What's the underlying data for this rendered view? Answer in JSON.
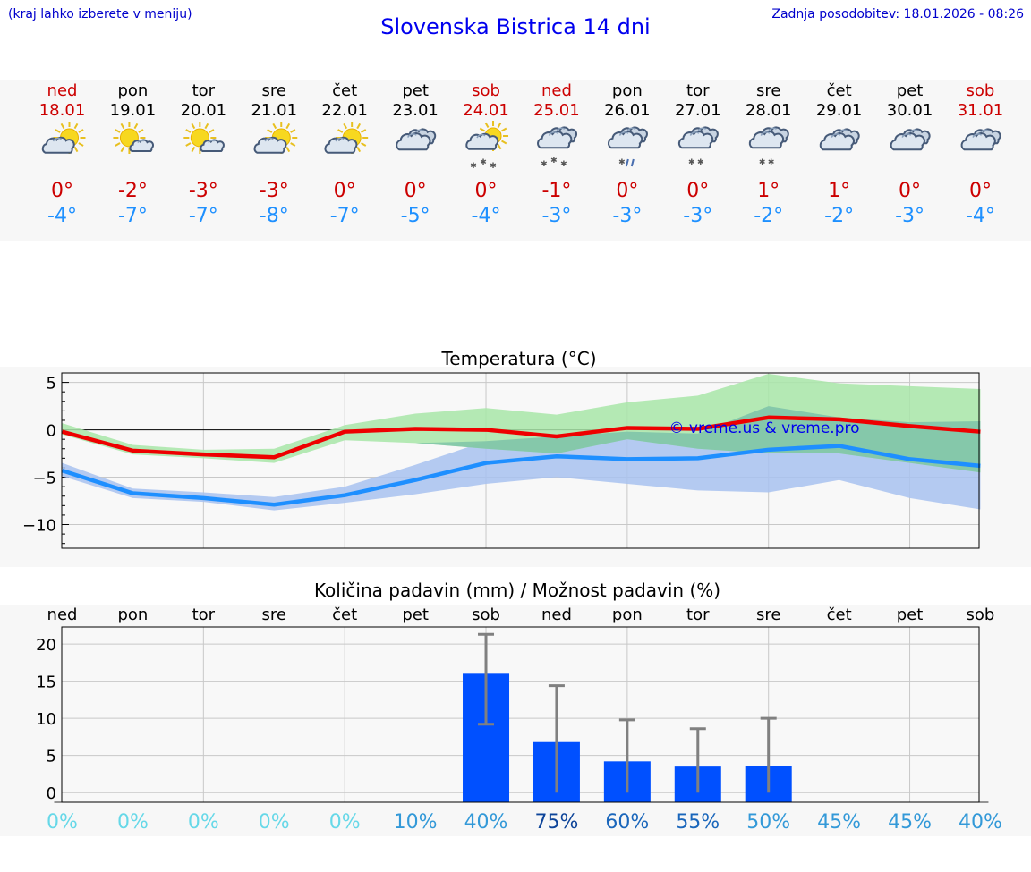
{
  "header": {
    "hint": "(kraj lahko izberete v meniju)",
    "title": "Slovenska Bistrica 14 dni",
    "updated": "Zadnja posodobitev: 18.01.2026 - 08:26"
  },
  "colors": {
    "weekend": "#cc0000",
    "weekday": "#000000",
    "tmax": "#cc0000",
    "tmin": "#1e90ff",
    "tmax_line": "#ee0000",
    "tmin_line": "#1e8fff",
    "tmax_band": "#a8e6a8",
    "tmin_band": "#a8c2f0",
    "overlap_band": "#7cc2a8",
    "precip_bar": "#0050ff",
    "error_bar": "#808080",
    "watermark": "#0000ee"
  },
  "forecast": [
    {
      "day": "ned",
      "date": "18.01",
      "weekend": true,
      "icon": "sun-cloud-icon",
      "tmax": "0°",
      "tmin": "-4°"
    },
    {
      "day": "pon",
      "date": "19.01",
      "weekend": false,
      "icon": "sun-small-cloud-icon",
      "tmax": "-2°",
      "tmin": "-7°"
    },
    {
      "day": "tor",
      "date": "20.01",
      "weekend": false,
      "icon": "sun-small-cloud-icon",
      "tmax": "-3°",
      "tmin": "-7°"
    },
    {
      "day": "sre",
      "date": "21.01",
      "weekend": false,
      "icon": "sun-cloud-icon",
      "tmax": "-3°",
      "tmin": "-8°"
    },
    {
      "day": "čet",
      "date": "22.01",
      "weekend": false,
      "icon": "sun-cloud-icon",
      "tmax": "0°",
      "tmin": "-7°"
    },
    {
      "day": "pet",
      "date": "23.01",
      "weekend": false,
      "icon": "cloudy-icon",
      "tmax": "0°",
      "tmin": "-5°"
    },
    {
      "day": "sob",
      "date": "24.01",
      "weekend": true,
      "icon": "sun-cloud-snow-icon",
      "tmax": "0°",
      "tmin": "-4°"
    },
    {
      "day": "ned",
      "date": "25.01",
      "weekend": true,
      "icon": "cloud-snow-icon",
      "tmax": "-1°",
      "tmin": "-3°"
    },
    {
      "day": "pon",
      "date": "26.01",
      "weekend": false,
      "icon": "cloud-sleet-icon",
      "tmax": "0°",
      "tmin": "-3°"
    },
    {
      "day": "tor",
      "date": "27.01",
      "weekend": false,
      "icon": "cloud-light-snow-icon",
      "tmax": "0°",
      "tmin": "-3°"
    },
    {
      "day": "sre",
      "date": "28.01",
      "weekend": false,
      "icon": "cloud-light-snow-icon",
      "tmax": "1°",
      "tmin": "-2°"
    },
    {
      "day": "čet",
      "date": "29.01",
      "weekend": false,
      "icon": "cloudy-icon",
      "tmax": "1°",
      "tmin": "-2°"
    },
    {
      "day": "pet",
      "date": "30.01",
      "weekend": false,
      "icon": "cloudy-icon",
      "tmax": "0°",
      "tmin": "-3°"
    },
    {
      "day": "sob",
      "date": "31.01",
      "weekend": true,
      "icon": "cloudy-icon",
      "tmax": "0°",
      "tmin": "-4°"
    }
  ],
  "chart_data": [
    {
      "type": "line",
      "title": "Temperatura (°C)",
      "xlabel": "",
      "ylabel": "",
      "x": [
        0,
        1,
        2,
        3,
        4,
        5,
        6,
        7,
        8,
        9,
        10,
        11,
        12,
        13
      ],
      "ylim": [
        -12.5,
        6
      ],
      "yticks": [
        5,
        0,
        -5,
        -10
      ],
      "ytick_labels": [
        "5",
        "0",
        "−5",
        "−10"
      ],
      "grid": true,
      "watermark": "© vreme.us & vreme.pro",
      "series": [
        {
          "name": "Tmax",
          "values": [
            -0.2,
            -2.2,
            -2.6,
            -2.9,
            -0.2,
            0.1,
            0.0,
            -0.7,
            0.2,
            0.1,
            1.3,
            1.1,
            0.4,
            -0.2
          ]
        },
        {
          "name": "Tmax range",
          "low": [
            -0.5,
            -2.6,
            -3.0,
            -3.5,
            -1.1,
            -1.4,
            -2.0,
            -2.5,
            -1.0,
            -2.0,
            -2.5,
            -2.5,
            -3.5,
            -4.5
          ],
          "high": [
            0.7,
            -1.6,
            -2.1,
            -2.0,
            0.5,
            1.7,
            2.3,
            1.6,
            2.9,
            3.6,
            5.9,
            4.9,
            4.6,
            4.3
          ]
        },
        {
          "name": "Tmin",
          "values": [
            -4.3,
            -6.7,
            -7.2,
            -7.9,
            -6.9,
            -5.3,
            -3.5,
            -2.8,
            -3.1,
            -3.0,
            -2.1,
            -1.7,
            -3.1,
            -3.8
          ]
        },
        {
          "name": "Tmin range",
          "low": [
            -4.9,
            -7.2,
            -7.6,
            -8.5,
            -7.7,
            -6.8,
            -5.7,
            -5.0,
            -5.7,
            -6.4,
            -6.6,
            -5.3,
            -7.2,
            -8.4
          ],
          "high": [
            -3.5,
            -6.2,
            -6.6,
            -7.1,
            -6.0,
            -3.7,
            -1.2,
            -0.7,
            -0.2,
            -0.4,
            2.5,
            1.3,
            0.8,
            0.9
          ]
        }
      ]
    },
    {
      "type": "bar",
      "title": "Količina padavin (mm) / Možnost padavin (%)",
      "categories": [
        "ned",
        "pon",
        "tor",
        "sre",
        "čet",
        "pet",
        "sob",
        "ned",
        "pon",
        "tor",
        "sre",
        "čet",
        "pet",
        "sob"
      ],
      "values": [
        0,
        0,
        0,
        0,
        0,
        0,
        16.0,
        6.8,
        4.2,
        3.5,
        3.6,
        0,
        0,
        0
      ],
      "error_high": [
        0,
        0,
        0,
        0,
        0,
        0,
        21.3,
        14.4,
        9.8,
        8.6,
        10.0,
        0,
        0,
        0
      ],
      "error_low": [
        0,
        0,
        0,
        0,
        0,
        0,
        9.2,
        0,
        0,
        0,
        0,
        0,
        0,
        0
      ],
      "probability": [
        "0%",
        "0%",
        "0%",
        "0%",
        "0%",
        "10%",
        "40%",
        "75%",
        "60%",
        "55%",
        "50%",
        "45%",
        "45%",
        "40%"
      ],
      "ylim": [
        -1.3,
        22.3
      ],
      "yticks": [
        20,
        15,
        10,
        5,
        0
      ],
      "ytick_labels": [
        "20",
        "15",
        "10",
        "5",
        "0"
      ],
      "grid": true,
      "xlabel": "",
      "ylabel": ""
    }
  ]
}
